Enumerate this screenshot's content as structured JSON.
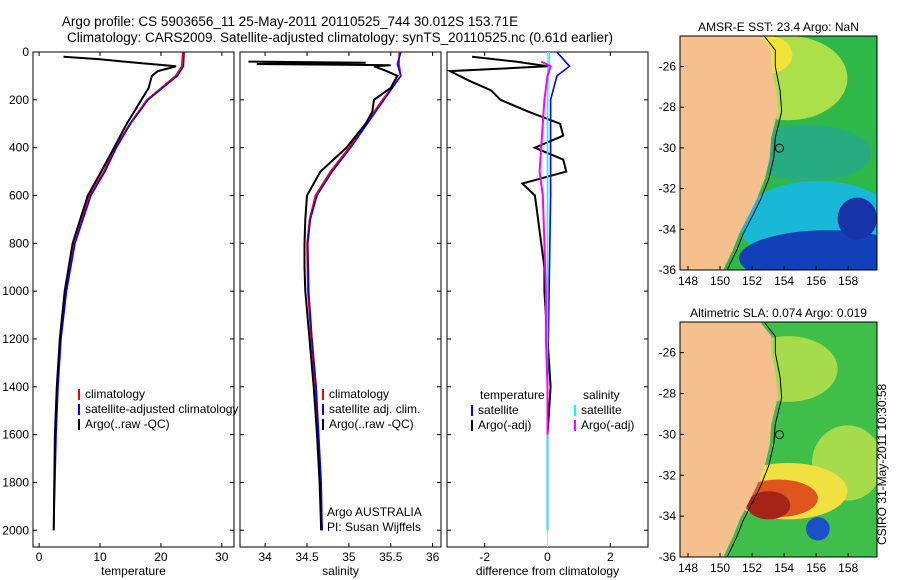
{
  "titles": {
    "line1": "Argo profile: CS 5903656_11 25-May-2011 20110525_744 30.012S 153.71E",
    "line2": "Climatology: CARS2009. Satellite-adjusted climatology: synTS_20110525.nc (0.61d earlier)"
  },
  "credit": "CSIRO 31-May-2011 10:30:58",
  "colors": {
    "climatology": "#ff0000",
    "satellite": "#0000ff",
    "argo": "#000000",
    "satellite_diff": "#00ffff",
    "argo_diff": "#ff00ff",
    "land": "#f5c08e"
  },
  "chart_data": [
    {
      "type": "line",
      "id": "temperature",
      "xlabel": "temperature",
      "ylabel": "",
      "xlim": [
        -1,
        32
      ],
      "ylim": [
        2070,
        0
      ],
      "xticks": [
        0,
        10,
        20,
        30
      ],
      "yticks": [
        0,
        200,
        400,
        600,
        800,
        1000,
        1200,
        1400,
        1600,
        1800,
        2000
      ],
      "legend": [
        "climatology",
        "satellite-adjusted climatology",
        "Argo(..raw -QC)"
      ],
      "series": [
        {
          "name": "climatology",
          "depth": [
            0,
            60,
            100,
            200,
            300,
            400,
            500,
            600,
            800,
            1000,
            1200,
            1400,
            1600,
            1800,
            2000
          ],
          "values": [
            23.6,
            23.4,
            22.4,
            17.7,
            14.9,
            12.5,
            10.6,
            8.3,
            5.8,
            4.4,
            3.5,
            3.0,
            2.7,
            2.5,
            2.4
          ]
        },
        {
          "name": "satellite-adjusted climatology",
          "depth": [
            0,
            60,
            100,
            200,
            300,
            400,
            500,
            600,
            800,
            1000,
            1200,
            1400,
            1600,
            1800,
            2000
          ],
          "values": [
            23.8,
            23.7,
            22.7,
            17.9,
            15.0,
            12.7,
            10.8,
            8.5,
            5.9,
            4.5,
            3.6,
            3.1,
            2.8,
            2.6,
            2.4
          ]
        },
        {
          "name": "Argo(..raw -QC)",
          "depth": [
            20,
            30,
            45,
            60,
            80,
            100,
            150,
            200,
            300,
            400,
            500,
            600,
            800,
            1000,
            1200,
            1400,
            1600,
            1800,
            2000
          ],
          "values": [
            4.0,
            10.0,
            16.0,
            22.5,
            19.5,
            18.5,
            18.0,
            16.8,
            14.4,
            12.3,
            10.2,
            8.0,
            5.5,
            4.2,
            3.4,
            2.9,
            2.6,
            2.5,
            2.4
          ]
        }
      ]
    },
    {
      "type": "line",
      "id": "salinity",
      "xlabel": "salinity",
      "xlim": [
        33.7,
        36.1
      ],
      "ylim": [
        2070,
        0
      ],
      "xticks": [
        34,
        34.5,
        35,
        35.5,
        36
      ],
      "legend": [
        "climatology",
        "satellite adj. clim.",
        "Argo(..raw -QC)"
      ],
      "annotation": [
        "Argo AUSTRALIA",
        "PI: Susan Wijffels"
      ],
      "series": [
        {
          "name": "climatology",
          "depth": [
            0,
            50,
            100,
            200,
            300,
            400,
            500,
            600,
            700,
            800,
            1000,
            1200,
            1400,
            1600,
            1800,
            2000
          ],
          "values": [
            35.6,
            35.6,
            35.62,
            35.4,
            35.2,
            35.0,
            34.78,
            34.6,
            34.53,
            34.5,
            34.51,
            34.55,
            34.6,
            34.63,
            34.66,
            34.68
          ]
        },
        {
          "name": "satellite adj. clim.",
          "depth": [
            0,
            50,
            100,
            200,
            300,
            400,
            500,
            600,
            700,
            800,
            1000,
            1200,
            1400,
            1600,
            1800,
            2000
          ],
          "values": [
            35.62,
            35.58,
            35.62,
            35.42,
            35.22,
            35.02,
            34.8,
            34.62,
            34.54,
            34.51,
            34.52,
            34.56,
            34.61,
            34.64,
            34.67,
            34.68
          ]
        },
        {
          "name": "Argo(..raw -QC)",
          "depth": [
            40,
            45,
            50,
            55,
            60,
            80,
            100,
            150,
            200,
            250,
            300,
            400,
            500,
            600,
            700,
            800,
            900,
            1000,
            1200,
            1400,
            1600,
            1800,
            2000
          ],
          "values": [
            33.8,
            35.2,
            33.9,
            35.5,
            35.3,
            35.45,
            35.58,
            35.5,
            35.3,
            35.28,
            35.2,
            34.97,
            34.66,
            34.5,
            34.48,
            34.47,
            34.47,
            34.48,
            34.53,
            34.58,
            34.62,
            34.65,
            34.67
          ]
        }
      ]
    },
    {
      "type": "line",
      "id": "difference",
      "xlabel": "difference from climatology",
      "xlim": [
        -3.2,
        3.2
      ],
      "ylim": [
        2070,
        0
      ],
      "xticks": [
        -2,
        0,
        2
      ],
      "legend_left": [
        "temperature",
        "satellite",
        "Argo(-adj)"
      ],
      "legend_right": [
        "salinity",
        "satellite",
        "Argo(-adj)"
      ],
      "series": [
        {
          "name": "temperature satellite",
          "depth": [
            0,
            60,
            100,
            200,
            400,
            600,
            1000,
            1400,
            2000
          ],
          "values": [
            0.3,
            0.7,
            0.3,
            0.1,
            0.1,
            0.1,
            0.05,
            0.0,
            0.0
          ]
        },
        {
          "name": "temperature Argo(-adj)",
          "depth": [
            20,
            40,
            60,
            80,
            120,
            160,
            200,
            250,
            300,
            350,
            400,
            450,
            500,
            550,
            600,
            700,
            800,
            900,
            1000,
            1100,
            1200,
            1300,
            1400,
            1500,
            1600
          ],
          "values": [
            -2.4,
            -1.0,
            0.0,
            -3.1,
            -2.5,
            -1.8,
            -1.5,
            -0.6,
            0.4,
            0.5,
            -0.4,
            0.5,
            0.6,
            -0.8,
            -0.4,
            -0.3,
            -0.2,
            -0.1,
            -0.1,
            -0.05,
            0.0,
            0.05,
            0.1,
            0.05,
            0.0
          ]
        },
        {
          "name": "salinity satellite",
          "depth": [
            0,
            50,
            100,
            200,
            600,
            1000,
            1600,
            2000
          ],
          "values": [
            0.05,
            0.05,
            0.02,
            0.0,
            0.0,
            0.0,
            0.0,
            0.0
          ]
        },
        {
          "name": "salinity Argo(-adj)",
          "depth": [
            40,
            60,
            100,
            200,
            300,
            400,
            500,
            600,
            800,
            1000,
            1200,
            1400,
            1600
          ],
          "values": [
            -0.2,
            0.1,
            0.0,
            -0.1,
            -0.15,
            -0.2,
            -0.25,
            -0.15,
            -0.1,
            -0.05,
            -0.05,
            0.0,
            0.0
          ]
        }
      ]
    },
    {
      "type": "heatmap",
      "id": "sst_map",
      "title": "AMSR-E SST: 23.4 Argo: NaN",
      "xlim": [
        147.5,
        159.8
      ],
      "ylim": [
        -36,
        -24.5
      ],
      "xticks": [
        148,
        150,
        152,
        154,
        156,
        158
      ],
      "yticks": [
        -26,
        -28,
        -30,
        -32,
        -34,
        -36
      ],
      "xticklabels": [
        "148",
        "150",
        "152",
        "154",
        "156",
        "158"
      ],
      "yticklabels": [
        "-26",
        "-28",
        "-30",
        "-32",
        "-34",
        "-36"
      ],
      "float_position": [
        153.71,
        -30.012
      ]
    },
    {
      "type": "heatmap",
      "id": "sla_map",
      "title": "Altimetric SLA: 0.074 Argo: 0.019",
      "xlim": [
        147.5,
        159.8
      ],
      "ylim": [
        -36,
        -24.5
      ],
      "xticks": [
        148,
        150,
        152,
        154,
        156,
        158
      ],
      "yticks": [
        -26,
        -28,
        -30,
        -32,
        -34,
        -36
      ],
      "xticklabels": [
        "148",
        "150",
        "152",
        "154",
        "156",
        "158"
      ],
      "yticklabels": [
        "-26",
        "-28",
        "-30",
        "-32",
        "-34",
        "-36"
      ],
      "float_position": [
        153.71,
        -30.012
      ]
    }
  ]
}
